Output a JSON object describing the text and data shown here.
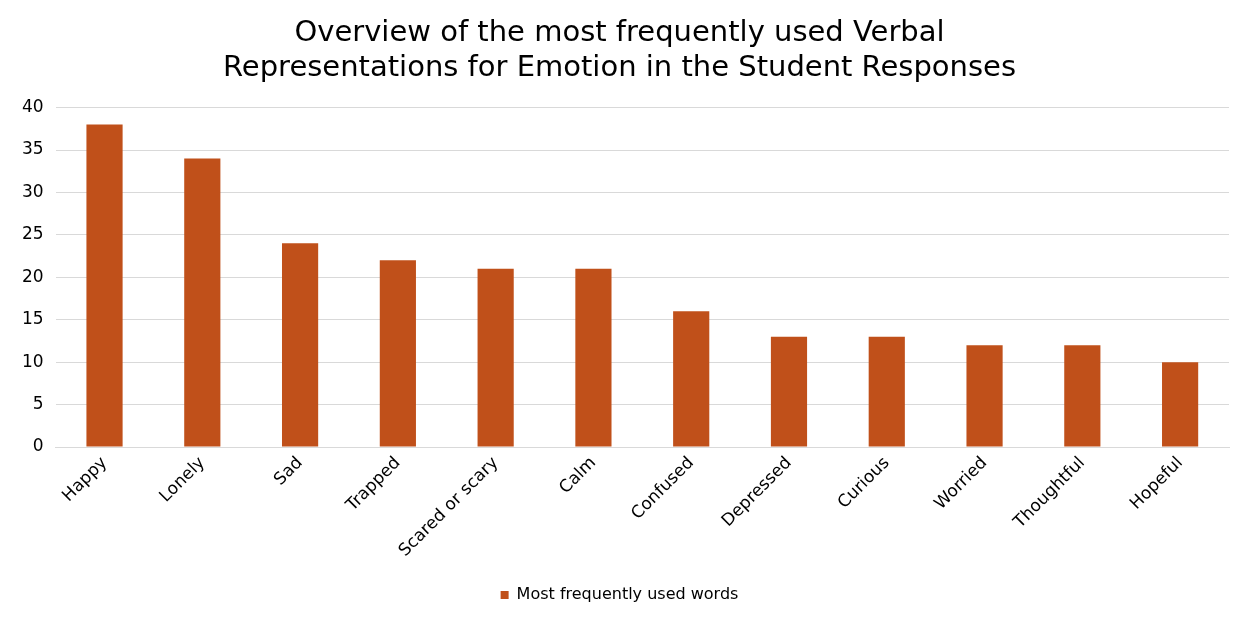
{
  "chart_data": {
    "type": "bar",
    "title": "Overview of the most frequently used Verbal Representations for Emotion in the Student Responses",
    "categories": [
      "Happy",
      "Lonely",
      "Sad",
      "Trapped",
      "Scared or scary",
      "Calm",
      "Confused",
      "Depressed",
      "Curious",
      "Worried",
      "Thoughtful",
      "Hopeful"
    ],
    "series": [
      {
        "name": "Most frequently used words",
        "color": "#c0501a",
        "values": [
          38,
          34,
          24,
          22,
          21,
          21,
          16,
          13,
          13,
          12,
          12,
          10
        ]
      }
    ],
    "ylim": [
      0,
      40
    ],
    "yticks": [
      0,
      5,
      10,
      15,
      20,
      25,
      30,
      35,
      40
    ],
    "grid": "y",
    "legend": "bottom"
  }
}
